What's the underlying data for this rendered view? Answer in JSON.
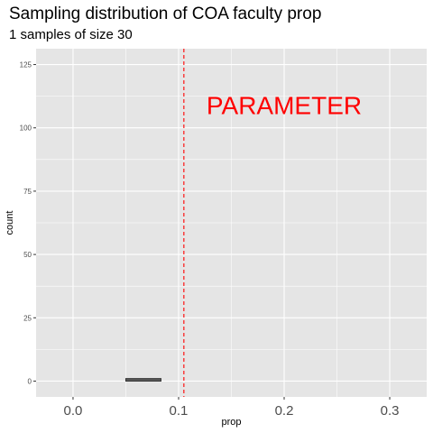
{
  "chart_data": {
    "type": "bar",
    "title": "Sampling distribution of COA faculty prop",
    "subtitle": "1 samples of size 30",
    "xlabel": "prop",
    "ylabel": "count",
    "xlim": [
      -0.035,
      0.335
    ],
    "ylim": [
      -6.25,
      131.25
    ],
    "x_ticks": [
      0.0,
      0.1,
      0.2,
      0.3
    ],
    "x_tick_labels": [
      "0.0",
      "0.1",
      "0.2",
      "0.3"
    ],
    "y_ticks": [
      0,
      25,
      50,
      75,
      100,
      125
    ],
    "y_tick_labels": [
      "0",
      "25",
      "50",
      "75",
      "100",
      "125"
    ],
    "bins": [
      {
        "x_start": 0.05,
        "x_end": 0.0833,
        "count": 1
      }
    ],
    "reference_line": {
      "x": 0.105,
      "style": "dashed",
      "color": "#ff0000"
    },
    "annotation": {
      "text": "PARAMETER",
      "x": 0.2,
      "y": 109,
      "color": "#ff0000"
    },
    "grid": true,
    "colors": {
      "panel_background": "#e5e5e5",
      "grid_major": "#ffffff",
      "bar_outline": "#333333",
      "text": "#000000",
      "tick_text": "#4d4d4d"
    }
  }
}
